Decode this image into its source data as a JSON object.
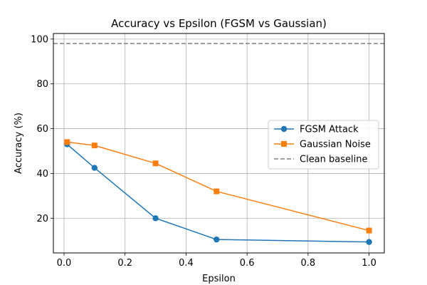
{
  "chart_data": {
    "type": "line",
    "title": "Accuracy vs Epsilon (FGSM vs Gaussian)",
    "xlabel": "Epsilon",
    "ylabel": "Accuracy (%)",
    "xlim": [
      -0.035,
      1.05
    ],
    "ylim": [
      4.5,
      102.5
    ],
    "xticks": [
      0.0,
      0.2,
      0.4,
      0.6,
      0.8,
      1.0
    ],
    "xtick_labels": [
      "0.0",
      "0.2",
      "0.4",
      "0.6",
      "0.8",
      "1.0"
    ],
    "yticks": [
      20,
      40,
      60,
      80,
      100
    ],
    "ytick_labels": [
      "20",
      "40",
      "60",
      "80",
      "100"
    ],
    "grid": true,
    "legend_position": "center-right",
    "series": [
      {
        "name": "FGSM Attack",
        "color": "#1f77b4",
        "marker": "circle",
        "x": [
          0.01,
          0.1,
          0.3,
          0.5,
          1.0
        ],
        "y": [
          53.0,
          42.5,
          20.0,
          10.5,
          9.4
        ]
      },
      {
        "name": "Gaussian Noise",
        "color": "#ff7f0e",
        "marker": "square",
        "x": [
          0.01,
          0.1,
          0.3,
          0.5,
          1.0
        ],
        "y": [
          54.0,
          52.5,
          44.5,
          32.0,
          14.5
        ]
      }
    ],
    "reference_line": {
      "name": "Clean baseline",
      "color": "#808080",
      "style": "dashed",
      "y": 98.0
    }
  }
}
